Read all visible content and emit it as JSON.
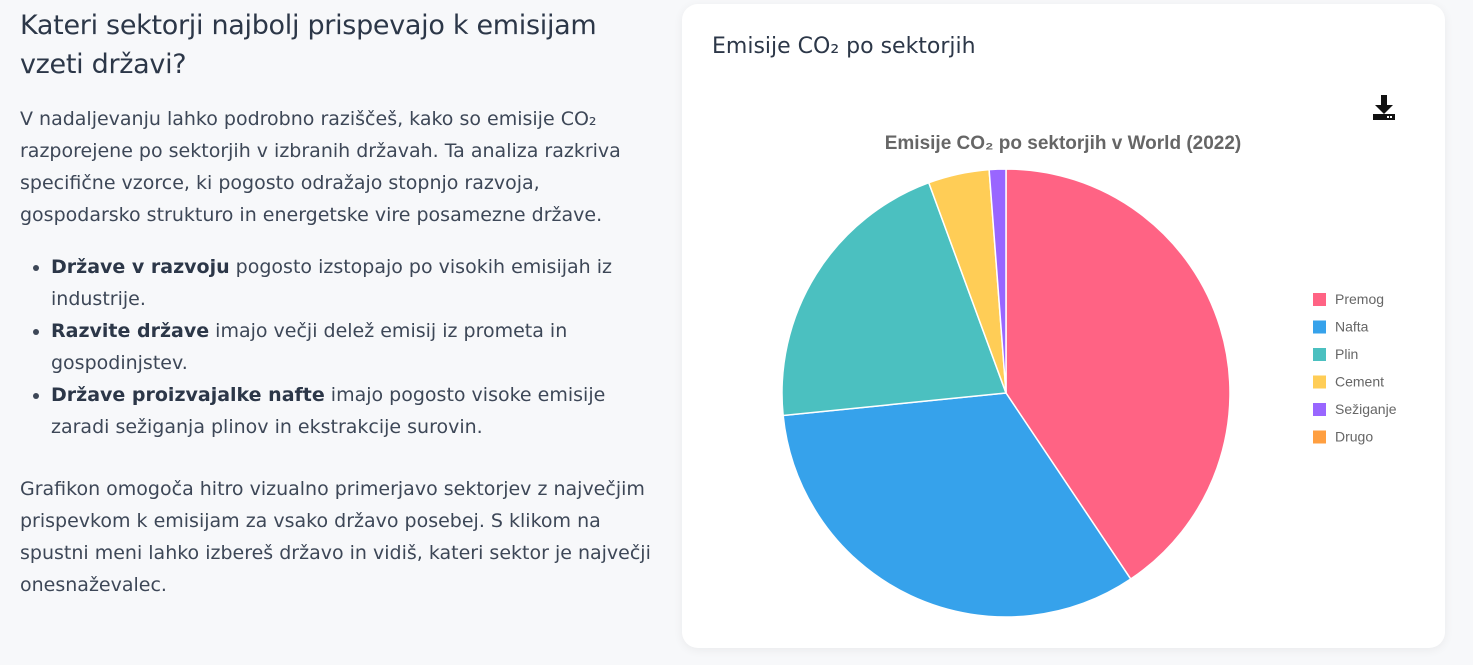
{
  "left": {
    "heading": "Kateri sektorji najbolj prispevajo k emisijam vzeti državi?",
    "intro": "V nadaljevanju lahko podrobno raziščeš, kako so emisije CO₂ razporejene po sektorjih v izbranih državah. Ta analiza razkriva specifične vzorce, ki pogosto odražajo stopnjo razvoja, gospodarsko strukturo in energetske vire posamezne države.",
    "bullets": [
      {
        "bold": "Države v razvoju",
        "text": " pogosto izstopajo po visokih emisijah iz industrije."
      },
      {
        "bold": "Razvite države",
        "text": " imajo večji delež emisij iz prometa in gospodinjstev."
      },
      {
        "bold": "Države proizvajalke nafte",
        "text": " imajo pogosto visoke emisije zaradi sežiganja plinov in ekstrakcije surovin."
      }
    ],
    "outro": "Grafikon omogoča hitro vizualno primerjavo sektorjev z največjim prispevkom k emisijam za vsako državo posebej. S klikom na spustni meni lahko izbereš državo in vidiš, kateri sektor je največji onesnaževalec."
  },
  "card": {
    "title": "Emisije CO₂ po sektorjih",
    "download_icon": "download-icon"
  },
  "chart_data": {
    "type": "pie",
    "title": "Emisije CO₂ po sektorjih v World (2022)",
    "categories": [
      "Premog",
      "Nafta",
      "Plin",
      "Cement",
      "Sežiganje",
      "Drugo"
    ],
    "values": [
      40.6,
      32.8,
      21.0,
      4.4,
      1.2,
      0.0
    ],
    "colors": [
      "#ff6384",
      "#36a2eb",
      "#4bc0c0",
      "#ffcd56",
      "#9966ff",
      "#ff9f40"
    ],
    "legend_position": "right"
  }
}
